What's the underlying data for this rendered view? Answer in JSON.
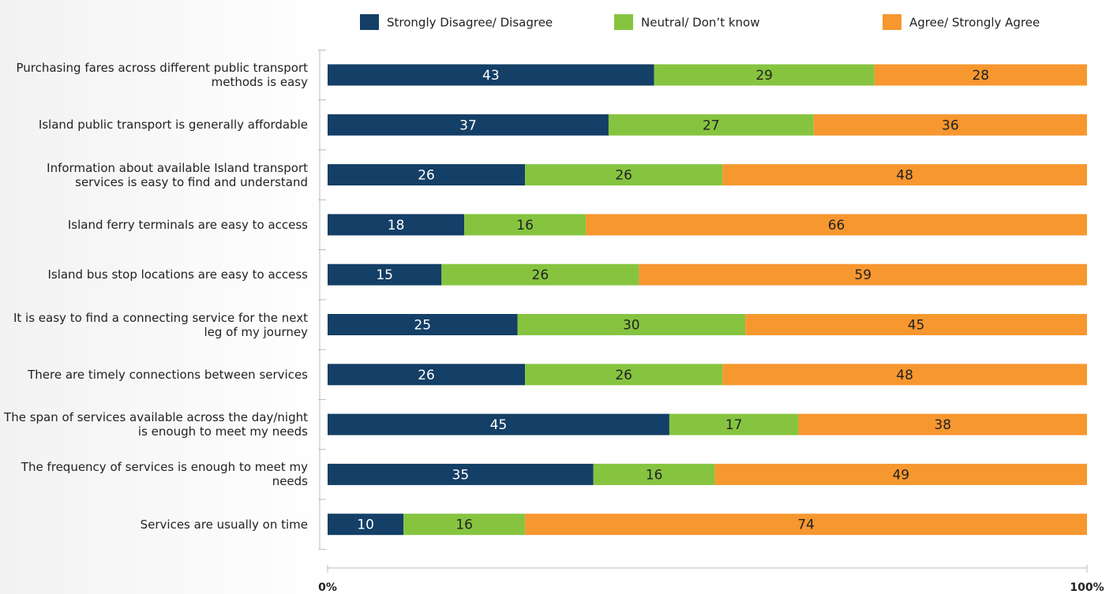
{
  "chart_data": {
    "type": "stacked-bar-horizontal",
    "categories": [
      "Purchasing fares across different public transport methods is easy",
      "Island public transport is generally affordable",
      "Information about available Island transport services is easy to find and understand",
      "Island ferry terminals are easy to access",
      "Island bus stop locations are easy to access",
      "It is easy to find a connecting service for the next leg of my journey",
      "There are timely connections between services",
      "The span of services available across the day/night is enough to meet my needs",
      "The frequency of services is enough to meet my needs",
      "Services are usually on time"
    ],
    "series": [
      {
        "name": "Strongly Disagree/ Disagree",
        "color": "#143f66",
        "values": [
          43,
          37,
          26,
          18,
          15,
          25,
          26,
          45,
          35,
          10
        ]
      },
      {
        "name": "Neutral/ Don’t know",
        "color": "#86c440",
        "values": [
          29,
          27,
          26,
          16,
          26,
          30,
          26,
          17,
          16,
          16
        ]
      },
      {
        "name": "Agree/ Strongly Agree",
        "color": "#f7972f",
        "values": [
          28,
          36,
          48,
          66,
          59,
          45,
          48,
          38,
          49,
          74
        ]
      }
    ],
    "xlim": [
      0,
      100
    ],
    "xticks": [
      {
        "value": 0,
        "label": "0%"
      },
      {
        "value": 100,
        "label": "100%"
      }
    ],
    "legend": "top"
  }
}
